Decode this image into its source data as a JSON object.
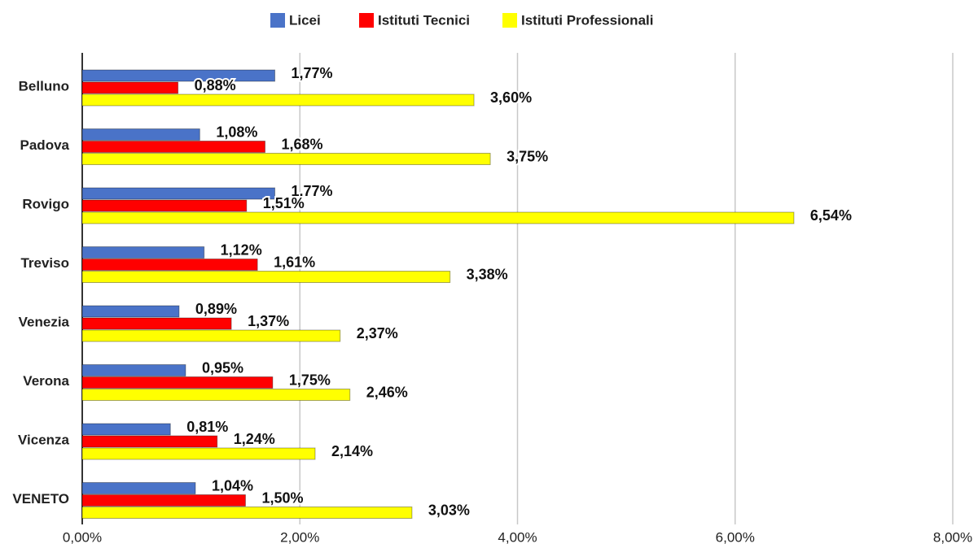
{
  "chart_data": {
    "type": "bar",
    "orientation": "horizontal",
    "categories": [
      "Belluno",
      "Padova",
      "Rovigo",
      "Treviso",
      "Venezia",
      "Verona",
      "Vicenza",
      "VENETO"
    ],
    "series": [
      {
        "name": "Licei",
        "color": "#4a73c8",
        "values": [
          1.77,
          1.08,
          1.77,
          1.12,
          0.89,
          0.95,
          0.81,
          1.04
        ],
        "value_labels": [
          "1,77%",
          "1,08%",
          "1,77%",
          "1,12%",
          "0,89%",
          "0,95%",
          "0,81%",
          "1,04%"
        ]
      },
      {
        "name": "Istituti Tecnici",
        "color": "#ff0000",
        "values": [
          0.88,
          1.68,
          1.51,
          1.61,
          1.37,
          1.75,
          1.24,
          1.5
        ],
        "value_labels": [
          "0,88%",
          "1,68%",
          "1,51%",
          "1,61%",
          "1,37%",
          "1,75%",
          "1,24%",
          "1,50%"
        ]
      },
      {
        "name": "Istituti Professionali",
        "color": "#ffff00",
        "values": [
          3.6,
          3.75,
          6.54,
          3.38,
          2.37,
          2.46,
          2.14,
          3.03
        ],
        "value_labels": [
          "3,60%",
          "3,75%",
          "6,54%",
          "3,38%",
          "2,37%",
          "2,46%",
          "2,14%",
          "3,03%"
        ]
      }
    ],
    "xlim": [
      0,
      8
    ],
    "xticks": [
      {
        "value": 0,
        "label": "0,00%"
      },
      {
        "value": 2,
        "label": "2,00%"
      },
      {
        "value": 4,
        "label": "4,00%"
      },
      {
        "value": 6,
        "label": "6,00%"
      },
      {
        "value": 8,
        "label": "8,00%"
      }
    ],
    "grid": true,
    "legend": "top"
  }
}
